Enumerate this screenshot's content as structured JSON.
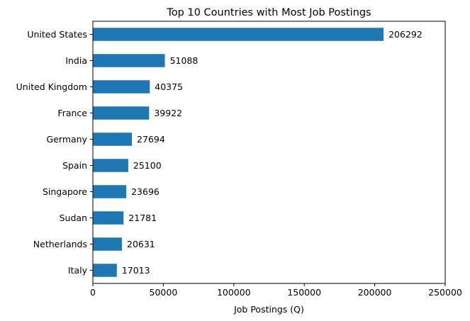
{
  "chart_data": {
    "type": "bar",
    "orientation": "horizontal",
    "title": "Top 10 Countries with Most Job Postings",
    "xlabel": "Job Postings (Q)",
    "ylabel": "",
    "categories": [
      "United States",
      "India",
      "United Kingdom",
      "France",
      "Germany",
      "Spain",
      "Singapore",
      "Sudan",
      "Netherlands",
      "Italy"
    ],
    "values": [
      206292,
      51088,
      40375,
      39922,
      27694,
      25100,
      23696,
      21781,
      20631,
      17013
    ],
    "data_labels": [
      "206292",
      "51088",
      "40375",
      "39922",
      "27694",
      "25100",
      "23696",
      "21781",
      "20631",
      "17013"
    ],
    "xlim": [
      0,
      250000
    ],
    "xticks": [
      0,
      50000,
      100000,
      150000,
      200000,
      250000
    ],
    "xtick_labels": [
      "0",
      "50000",
      "100000",
      "150000",
      "200000",
      "250000"
    ],
    "grid": false,
    "bar_color": "#1f77b4"
  }
}
